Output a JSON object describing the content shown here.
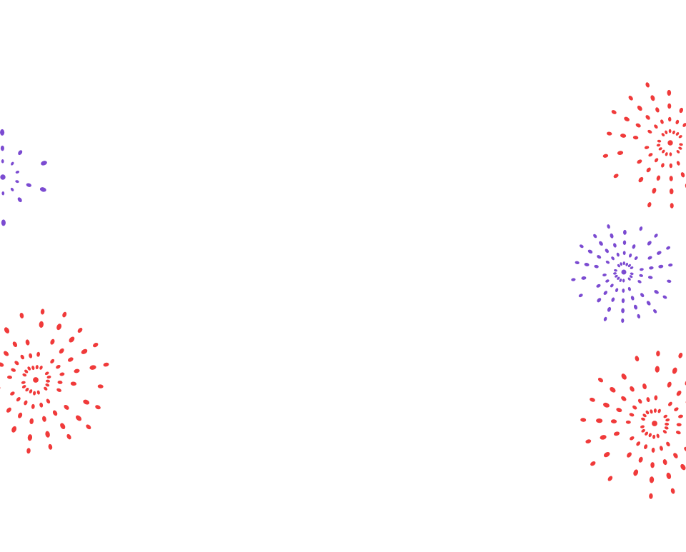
{
  "background_color": "#ffffff",
  "fireworks": [
    {
      "name": "firework-burst-purple-left-edge",
      "color": "#7b4bd1",
      "kind": "purple"
    },
    {
      "name": "firework-burst-red-left",
      "color": "#f03a3a",
      "kind": "red"
    },
    {
      "name": "firework-burst-red-right-top",
      "color": "#f03a3a",
      "kind": "red"
    },
    {
      "name": "firework-burst-purple-right-middle",
      "color": "#7b4bd1",
      "kind": "purple"
    },
    {
      "name": "firework-burst-red-right-bottom",
      "color": "#f03a3a",
      "kind": "red"
    }
  ]
}
